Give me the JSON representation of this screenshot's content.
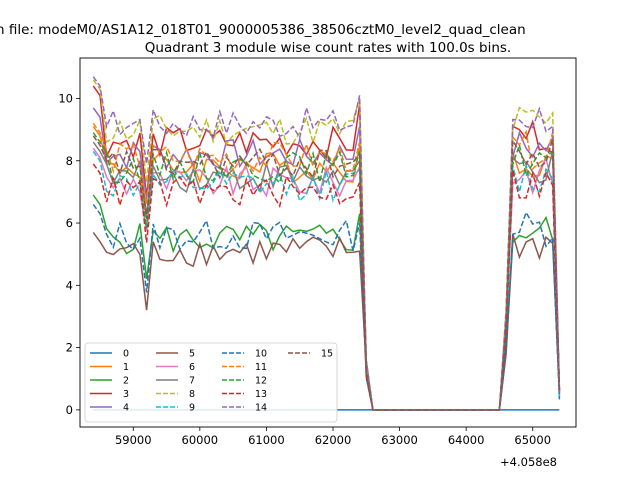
{
  "suptitle": "n file: modeM0/AS1A12_018T01_9000005386_38506cztM0_level2_quad_clean",
  "chart_data": {
    "type": "line",
    "title": "Quadrant 3 module wise count rates with 100.0s bins.",
    "xlabel": "",
    "ylabel": "",
    "x_offset_label": "+4.058e8",
    "xlim": [
      58200,
      65650
    ],
    "ylim": [
      -0.55,
      11.3
    ],
    "xticks": [
      59000,
      60000,
      61000,
      62000,
      63000,
      64000,
      65000
    ],
    "xtick_labels": [
      "59000",
      "60000",
      "61000",
      "62000",
      "63000",
      "64000",
      "65000"
    ],
    "yticks": [
      0,
      2,
      4,
      6,
      8,
      10
    ],
    "ytick_labels": [
      "0",
      "2",
      "4",
      "6",
      "8",
      "10"
    ],
    "grid": false,
    "legend_position": "lower-left",
    "legend_columns": 4,
    "segments": [
      {
        "x_start": 58400,
        "x_end": 62400,
        "step": 100
      },
      {
        "x_start": 62400,
        "x_end": 64500,
        "step": 100
      },
      {
        "x_start": 64500,
        "x_end": 65400,
        "step": 100
      }
    ],
    "series": [
      {
        "name": "0",
        "color": "#1f77b4",
        "dash": "solid",
        "level": 0.0,
        "edge": 0.0
      },
      {
        "name": "1",
        "color": "#ff7f0e",
        "dash": "solid",
        "level": 7.8,
        "edge": 9.1
      },
      {
        "name": "2",
        "color": "#2ca02c",
        "dash": "solid",
        "level": 5.5,
        "edge": 6.9
      },
      {
        "name": "3",
        "color": "#d62728",
        "dash": "solid",
        "level": 8.6,
        "edge": 10.4
      },
      {
        "name": "4",
        "color": "#9467bd",
        "dash": "solid",
        "level": 8.2,
        "edge": 9.7
      },
      {
        "name": "5",
        "color": "#8c564b",
        "dash": "solid",
        "level": 5.1,
        "edge": 5.7
      },
      {
        "name": "6",
        "color": "#e377c2",
        "dash": "solid",
        "level": 7.3,
        "edge": 8.4
      },
      {
        "name": "7",
        "color": "#7f7f7f",
        "dash": "solid",
        "level": 7.5,
        "edge": 8.6
      },
      {
        "name": "8",
        "color": "#bcbd22",
        "dash": "dashed",
        "level": 9.0,
        "edge": 10.6
      },
      {
        "name": "9",
        "color": "#17becf",
        "dash": "dashed",
        "level": 7.2,
        "edge": 8.3
      },
      {
        "name": "10",
        "color": "#1f77b4",
        "dash": "dashed",
        "level": 5.6,
        "edge": 6.6
      },
      {
        "name": "11",
        "color": "#ff7f0e",
        "dash": "dashed",
        "level": 8.1,
        "edge": 9.2
      },
      {
        "name": "12",
        "color": "#2ca02c",
        "dash": "dashed",
        "level": 7.8,
        "edge": 8.9
      },
      {
        "name": "13",
        "color": "#d62728",
        "dash": "dashed",
        "level": 7.0,
        "edge": 7.9
      },
      {
        "name": "14",
        "color": "#9467bd",
        "dash": "dashed",
        "level": 9.2,
        "edge": 10.7
      },
      {
        "name": "15",
        "color": "#8c564b",
        "dash": "dashed",
        "level": 7.9,
        "edge": 8.8
      }
    ]
  }
}
